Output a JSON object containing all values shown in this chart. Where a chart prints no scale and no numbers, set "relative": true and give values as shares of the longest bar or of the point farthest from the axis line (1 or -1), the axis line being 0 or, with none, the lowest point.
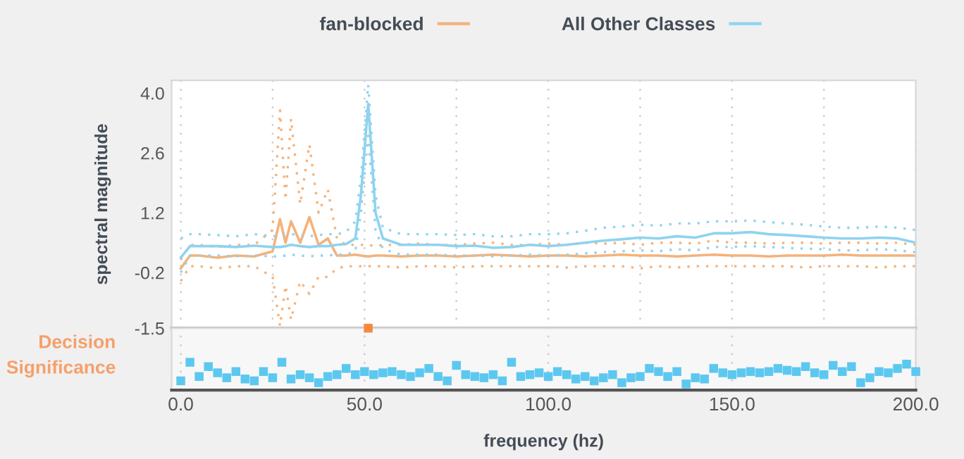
{
  "chart_data": [
    {
      "type": "line",
      "ylabel": "spectral magnitude",
      "legend": "top",
      "grid": "x",
      "tick_labels": "y",
      "xlim": [
        -2.5,
        200
      ],
      "ylim": [
        -1.5,
        4.3
      ],
      "yticks": [
        {
          "value": 4.0,
          "label": "4.0"
        },
        2.6,
        1.2,
        -0.2,
        -1.5
      ],
      "marker": "none",
      "x": [
        0,
        2.5,
        5,
        10,
        15,
        20,
        25,
        27,
        28.5,
        30,
        32.5,
        35,
        37.5,
        40,
        42.5,
        45,
        47.5,
        49,
        51,
        53,
        55,
        60,
        65,
        70,
        75,
        80,
        85,
        90,
        95,
        100,
        105,
        110,
        115,
        120,
        125,
        130,
        135,
        140,
        145,
        150,
        155,
        160,
        165,
        170,
        175,
        180,
        185,
        190,
        195,
        200
      ],
      "series": [
        {
          "name": "fan-blocked",
          "color": "#f5b27a",
          "line_style": "solid",
          "values": [
            -0.1,
            0.2,
            0.2,
            0.15,
            0.2,
            0.18,
            0.3,
            1.05,
            0.5,
            1.0,
            0.5,
            1.1,
            0.45,
            0.6,
            0.2,
            0.2,
            0.22,
            0.2,
            0.18,
            0.2,
            0.2,
            0.18,
            0.2,
            0.2,
            0.18,
            0.2,
            0.22,
            0.2,
            0.18,
            0.2,
            0.2,
            0.18,
            0.2,
            0.22,
            0.2,
            0.2,
            0.18,
            0.2,
            0.22,
            0.2,
            0.2,
            0.18,
            0.2,
            0.2,
            0.2,
            0.22,
            0.2,
            0.2,
            0.2,
            0.2
          ]
        },
        {
          "color": "#f5b27a",
          "line_style": "dotted",
          "values": [
            0.1,
            0.45,
            0.45,
            0.4,
            0.45,
            0.45,
            0.8,
            3.6,
            1.5,
            3.4,
            1.4,
            2.8,
            1.2,
            1.75,
            0.6,
            0.45,
            0.45,
            0.45,
            0.45,
            0.42,
            0.45,
            0.45,
            0.48,
            0.45,
            0.45,
            0.48,
            0.5,
            0.45,
            0.45,
            0.48,
            0.45,
            0.5,
            0.48,
            0.5,
            0.45,
            0.5,
            0.5,
            0.48,
            0.55,
            0.5,
            0.5,
            0.48,
            0.5,
            0.5,
            0.48,
            0.5,
            0.5,
            0.48,
            0.5,
            0.45
          ]
        },
        {
          "color": "#f5b27a",
          "line_style": "dotted",
          "values": [
            -0.4,
            -0.05,
            -0.05,
            -0.1,
            -0.05,
            -0.05,
            -0.3,
            -1.45,
            -0.5,
            -1.3,
            -0.4,
            -0.7,
            -0.3,
            -0.3,
            -0.1,
            -0.05,
            -0.05,
            -0.05,
            -0.05,
            -0.05,
            -0.05,
            -0.08,
            -0.05,
            -0.05,
            -0.08,
            -0.05,
            -0.05,
            -0.05,
            -0.05,
            -0.05,
            -0.08,
            -0.05,
            -0.05,
            -0.05,
            -0.1,
            -0.05,
            -0.08,
            -0.05,
            -0.05,
            -0.05,
            -0.05,
            -0.05,
            -0.05,
            -0.08,
            -0.05,
            -0.05,
            -0.05,
            -0.08,
            -0.05,
            -0.05
          ]
        },
        {
          "name": "All Other Classes",
          "color": "#8fd3f0",
          "line_style": "solid",
          "values": [
            0.15,
            0.42,
            0.42,
            0.42,
            0.4,
            0.43,
            0.4,
            0.4,
            0.42,
            0.45,
            0.42,
            0.4,
            0.42,
            0.42,
            0.45,
            0.47,
            0.6,
            1.6,
            3.75,
            1.2,
            0.6,
            0.45,
            0.45,
            0.45,
            0.42,
            0.43,
            0.38,
            0.4,
            0.45,
            0.42,
            0.45,
            0.5,
            0.55,
            0.58,
            0.62,
            0.6,
            0.65,
            0.62,
            0.72,
            0.72,
            0.75,
            0.7,
            0.68,
            0.65,
            0.62,
            0.6,
            0.6,
            0.62,
            0.6,
            0.5
          ]
        },
        {
          "color": "#8fd3f0",
          "line_style": "dotted",
          "values": [
            0.6,
            0.7,
            0.7,
            0.68,
            0.65,
            0.7,
            0.65,
            0.65,
            0.68,
            0.7,
            0.68,
            0.65,
            0.68,
            0.7,
            0.7,
            0.75,
            1.0,
            2.0,
            4.2,
            1.6,
            0.85,
            0.7,
            0.7,
            0.7,
            0.68,
            0.7,
            0.65,
            0.65,
            0.7,
            0.7,
            0.72,
            0.78,
            0.85,
            0.88,
            0.92,
            0.9,
            0.95,
            0.95,
            1.0,
            1.0,
            1.02,
            0.98,
            0.95,
            0.92,
            0.88,
            0.85,
            0.85,
            0.88,
            0.85,
            0.8
          ]
        },
        {
          "color": "#8fd3f0",
          "line_style": "dotted",
          "values": [
            -0.2,
            0.2,
            0.2,
            0.2,
            0.18,
            0.2,
            0.18,
            0.18,
            0.2,
            0.22,
            0.2,
            0.18,
            0.2,
            0.2,
            0.22,
            0.22,
            0.3,
            1.2,
            3.0,
            0.8,
            0.35,
            0.22,
            0.22,
            0.22,
            0.2,
            0.2,
            0.18,
            0.2,
            0.22,
            0.2,
            0.22,
            0.25,
            0.28,
            0.3,
            0.32,
            0.3,
            0.35,
            0.32,
            0.4,
            0.4,
            0.42,
            0.4,
            0.38,
            0.36,
            0.35,
            0.32,
            0.32,
            0.35,
            0.32,
            0.28
          ]
        }
      ]
    },
    {
      "type": "scatter",
      "ylabel": "Decision Significance",
      "xlabel": "frequency (hz)",
      "relative": true,
      "tick_labels": "x",
      "grid": "x",
      "marker": "square",
      "xlim": [
        -2.5,
        200
      ],
      "xticks": [
        {
          "value": 0,
          "label": "0.0"
        },
        {
          "value": 50,
          "label": "50.0"
        },
        {
          "value": 100,
          "label": "100.0"
        },
        {
          "value": 150,
          "label": "150.0"
        },
        {
          "value": 200,
          "label": "200.0"
        }
      ],
      "series": [
        {
          "color": "#f58a3c",
          "x": [
            51
          ],
          "values": [
            1
          ]
        },
        {
          "color": "#5cc8f0",
          "x": [
            0,
            2.5,
            5,
            7.5,
            10,
            12.5,
            15,
            17.5,
            20,
            22.5,
            25,
            27.5,
            30,
            32.5,
            35,
            37.5,
            40,
            42.5,
            45,
            47.5,
            50,
            52.5,
            55,
            57.5,
            60,
            62.5,
            65,
            67.5,
            70,
            72.5,
            75,
            77.5,
            80,
            82.5,
            85,
            87.5,
            90,
            92.5,
            95,
            97.5,
            100,
            102.5,
            105,
            107.5,
            110,
            112.5,
            115,
            117.5,
            120,
            122.5,
            125,
            127.5,
            130,
            132.5,
            135,
            137.5,
            140,
            142.5,
            145,
            147.5,
            150,
            152.5,
            155,
            157.5,
            160,
            162.5,
            165,
            167.5,
            170,
            172.5,
            175,
            177.5,
            180,
            182.5,
            185,
            187.5,
            190,
            192.5,
            195,
            197.5,
            200
          ],
          "values": [
            0.15,
            0.45,
            0.22,
            0.38,
            0.28,
            0.2,
            0.3,
            0.18,
            0.15,
            0.3,
            0.2,
            0.45,
            0.18,
            0.25,
            0.2,
            0.12,
            0.22,
            0.25,
            0.35,
            0.25,
            0.3,
            0.25,
            0.28,
            0.3,
            0.25,
            0.22,
            0.28,
            0.35,
            0.22,
            0.15,
            0.4,
            0.25,
            0.22,
            0.2,
            0.25,
            0.15,
            0.45,
            0.22,
            0.25,
            0.28,
            0.22,
            0.3,
            0.25,
            0.18,
            0.22,
            0.15,
            0.2,
            0.25,
            0.12,
            0.2,
            0.22,
            0.35,
            0.3,
            0.22,
            0.3,
            0.1,
            0.2,
            0.18,
            0.35,
            0.28,
            0.25,
            0.28,
            0.3,
            0.28,
            0.3,
            0.35,
            0.32,
            0.3,
            0.38,
            0.28,
            0.25,
            0.4,
            0.3,
            0.38,
            0.12,
            0.2,
            0.3,
            0.28,
            0.35,
            0.42,
            0.3
          ]
        }
      ]
    }
  ]
}
